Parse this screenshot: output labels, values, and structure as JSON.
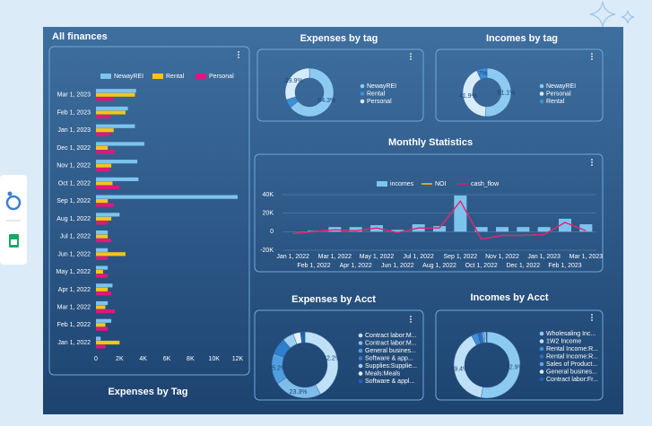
{
  "page": {
    "footer_label": "Expenses by Tag"
  },
  "chart_data": [
    {
      "type": "hbar",
      "title": "All finances",
      "categories": [
        "Jan 1, 2022",
        "Feb 1, 2022",
        "Mar 1, 2022",
        "Apr 1, 2022",
        "May 1, 2022",
        "Jun 1, 2022",
        "Jul 1, 2022",
        "Aug 1, 2022",
        "Sep 1, 2022",
        "Oct 1, 2022",
        "Nov 1, 2022",
        "Dec 1, 2022",
        "Jan 1, 2023",
        "Feb 1, 2023",
        "Mar 1, 2023"
      ],
      "series": [
        {
          "name": "NewayREI",
          "color": "#7cc4ee",
          "values": [
            400,
            1300,
            1000,
            1400,
            1000,
            1000,
            1000,
            2000,
            12000,
            3600,
            3500,
            4100,
            3300,
            2700,
            3400
          ]
        },
        {
          "name": "Rental",
          "color": "#f5c518",
          "values": [
            2000,
            800,
            800,
            1000,
            600,
            2500,
            1000,
            1300,
            1000,
            1400,
            1300,
            1000,
            1500,
            2500,
            3300
          ]
        },
        {
          "name": "Personal",
          "color": "#e0177c",
          "values": [
            800,
            1000,
            1600,
            1300,
            1000,
            1000,
            1300,
            1000,
            1500,
            2000,
            1200,
            1600,
            1200,
            1200,
            1500
          ]
        }
      ],
      "xlim": [
        0,
        12000
      ],
      "xticks": [
        0,
        {
          "value": 2000,
          "label": "2K"
        },
        {
          "value": 4000,
          "label": "4K"
        },
        {
          "value": 6000,
          "label": "6K"
        },
        {
          "value": 8000,
          "label": "8K"
        },
        {
          "value": 10000,
          "label": "10K"
        },
        {
          "value": 12000,
          "label": "12K"
        }
      ],
      "legend": "top"
    },
    {
      "type": "pie",
      "title": "Expenses by tag",
      "donut": true,
      "categories": [
        "NewayREI",
        "Rental",
        "Personal"
      ],
      "values": [
        64.3,
        5.8,
        29.9
      ],
      "value_labels": [
        "64.3%",
        null,
        "29.9%"
      ],
      "colors": [
        "#8ccaf2",
        "#3d8fd8",
        "#d7ecfb"
      ],
      "legend": "right"
    },
    {
      "type": "pie",
      "title": "Incomes by tag",
      "donut": true,
      "categories": [
        "NewayREI",
        "Personal",
        "Rental"
      ],
      "values": [
        51.1,
        41.9,
        7
      ],
      "value_labels": [
        "51.1%",
        "41.9%",
        "7%"
      ],
      "colors": [
        "#8ccaf2",
        "#d7ecfb",
        "#3d8fd8"
      ],
      "legend": "right"
    },
    {
      "type": "combo",
      "title": "Monthly Statistics",
      "categories": [
        "Jan 1, 2022",
        "Feb 1, 2022",
        "Mar 1, 2022",
        "Apr 1, 2022",
        "May 1, 2022",
        "Jun 1, 2022",
        "Jul 1, 2022",
        "Aug 1, 2022",
        "Sep 1, 2022",
        "Oct 1, 2022",
        "Nov 1, 2022",
        "Dec 1, 2022",
        "Jan 1, 2023",
        "Feb 1, 2023",
        "Mar 1, 2023"
      ],
      "series": [
        {
          "name": "incomes",
          "type": "bar",
          "color": "#7cc4ee",
          "values": [
            0,
            1000,
            5000,
            5000,
            7000,
            2000,
            8000,
            6000,
            39000,
            5000,
            5000,
            5000,
            5000,
            14000,
            8000
          ]
        },
        {
          "name": "NOI",
          "type": "line",
          "color": "#f5c518",
          "values": [
            -2000,
            0,
            2000,
            1000,
            4000,
            -1000,
            4000,
            4000,
            33000,
            -8000,
            -4000,
            -4000,
            -3000,
            10000,
            1000
          ]
        },
        {
          "name": "cash_flow",
          "type": "line",
          "color": "#e0177c",
          "values": [
            -2000,
            0,
            2000,
            1000,
            4000,
            -1000,
            4000,
            4000,
            33000,
            -8000,
            -4000,
            -4000,
            -3000,
            10000,
            1000
          ]
        }
      ],
      "ylim": [
        -20000,
        40000
      ],
      "yticks": [
        {
          "value": -20000,
          "label": "-20K"
        },
        0,
        {
          "value": 20000,
          "label": "20K"
        },
        {
          "value": 40000,
          "label": "40K"
        }
      ],
      "grid": true,
      "legend": "top"
    },
    {
      "type": "pie",
      "title": "Expenses by Acct",
      "donut": true,
      "categories": [
        "Contract labor:M...",
        "Contract labor:M...",
        "General busines...",
        "Software & app...",
        "Supplies:Supplie...",
        "Meals:Meals",
        "Software & appl..."
      ],
      "values": [
        42.2,
        23.3,
        15.2,
        8.1,
        5.4,
        3.6,
        2.2
      ],
      "value_labels": [
        "42.2%",
        "23.3%",
        "15.2%",
        null,
        null,
        null,
        null
      ],
      "colors": [
        "#bfe1f8",
        "#7fbce9",
        "#4f9fe0",
        "#2f7fcc",
        "#9dd0f3",
        "#e3f2fc",
        "#1f64ad"
      ],
      "legend": "right"
    },
    {
      "type": "pie",
      "title": "Incomes by Acct",
      "donut": true,
      "categories": [
        "Wholesaling Inc...",
        "1W2 Income",
        "Rental Income:R...",
        "Rental Income:R...",
        "Sales of Product...",
        "General busines...",
        "Contract labor:Fr..."
      ],
      "values": [
        52.9,
        39.4,
        3.1,
        2,
        1.3,
        0.8,
        0.5
      ],
      "value_labels": [
        "52.9%",
        "39.4%",
        null,
        null,
        null,
        null,
        null
      ],
      "colors": [
        "#8ccaf2",
        "#bfe1f8",
        "#3d8fd8",
        "#2a70bf",
        "#5fa8e3",
        "#d7ecfb",
        "#1f64ad"
      ],
      "legend": "right"
    }
  ]
}
